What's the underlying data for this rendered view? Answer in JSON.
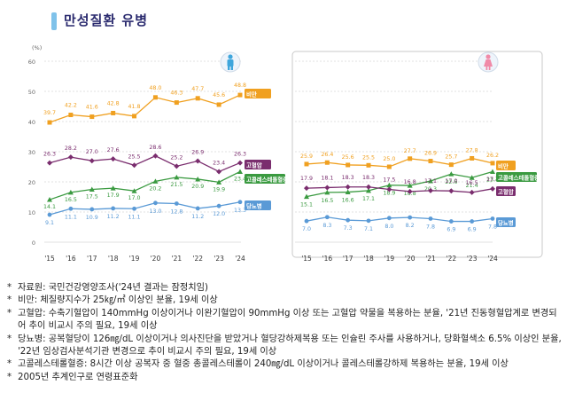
{
  "page_title": "만성질환 유병",
  "colors": {
    "obesity": "#f0a020",
    "hypertension": "#7a2d6e",
    "hypercholesterolemia": "#3a9a40",
    "diabetes": "#5a9ad6",
    "title_bar": "#7fc2ea",
    "male_icon": "#3fa6dc",
    "female_icon": "#f08aa8"
  },
  "icons": {
    "male": "male-person-icon",
    "female": "female-person-icon"
  },
  "chart_data": [
    {
      "type": "line",
      "panel": "male",
      "x": [
        "'15",
        "'16",
        "'17",
        "'18",
        "'19",
        "'20",
        "'21",
        "'22",
        "'23",
        "'24"
      ],
      "ylabel_unit": "(%)",
      "yticks": [
        0,
        10,
        20,
        30,
        40,
        50,
        60
      ],
      "ylim": [
        0,
        60
      ],
      "grid": true,
      "series": [
        {
          "name": "비만",
          "key": "obesity",
          "values": [
            39.7,
            42.2,
            41.6,
            42.8,
            41.8,
            48.0,
            46.3,
            47.7,
            45.6,
            48.8
          ],
          "labels": [
            "39.7",
            "42.2",
            "41.6",
            "42.8",
            "41.8",
            "48.0",
            "46.3",
            "47.7",
            "45.6",
            "48.8"
          ]
        },
        {
          "name": "고혈압",
          "key": "hypertension",
          "values": [
            26.3,
            28.2,
            27.0,
            27.6,
            25.5,
            28.6,
            25.2,
            26.9,
            23.4,
            26.3
          ],
          "labels": [
            "26.3",
            "28.2",
            "27.0",
            "27.6",
            "25.5",
            "28.6",
            "25.2",
            "26.9",
            "23.4",
            "26.3"
          ]
        },
        {
          "name": "고콜레스테롤혈증",
          "key": "hypercholesterolemia",
          "values": [
            14.1,
            16.5,
            17.5,
            17.9,
            17.0,
            20.2,
            21.5,
            20.9,
            19.9,
            23.4
          ],
          "labels": [
            "14.1",
            "16.5",
            "17.5",
            "17.9",
            "17.0",
            "20.2",
            "21.5",
            "20.9",
            "19.9",
            "23.4"
          ]
        },
        {
          "name": "당뇨병",
          "key": "diabetes",
          "values": [
            9.1,
            11.1,
            10.9,
            11.2,
            11.1,
            13.0,
            12.8,
            11.2,
            12.0,
            13.3
          ],
          "labels": [
            "9.1",
            "11.1",
            "10.9",
            "11.2",
            "11.1",
            "13.0",
            "12.8",
            "11.2",
            "12.0",
            "13.3"
          ]
        }
      ]
    },
    {
      "type": "line",
      "panel": "female",
      "x": [
        "'15",
        "'16",
        "'17",
        "'18",
        "'19",
        "'20",
        "'21",
        "'22",
        "'23",
        "'24"
      ],
      "ylim": [
        0,
        60
      ],
      "grid": true,
      "series": [
        {
          "name": "비만",
          "key": "obesity",
          "values": [
            25.9,
            26.4,
            25.6,
            25.5,
            25.0,
            27.7,
            26.9,
            25.7,
            27.8,
            26.2
          ],
          "labels": [
            "25.9",
            "26.4",
            "25.6",
            "25.5",
            "25.0",
            "27.7",
            "26.9",
            "25.7",
            "27.8",
            "26.2"
          ]
        },
        {
          "name": "고콜레스테롤혈증",
          "key": "hypercholesterolemia",
          "values": [
            15.1,
            16.5,
            16.6,
            17.1,
            18.9,
            18.8,
            20.3,
            22.6,
            21.4,
            23.4
          ],
          "labels": [
            "15.1",
            "16.5",
            "16.6",
            "17.1",
            "18.9",
            "18.8",
            "20.3",
            "22.6",
            "21.4",
            "23.4"
          ]
        },
        {
          "name": "고혈압",
          "key": "hypertension",
          "values": [
            17.9,
            18.1,
            18.3,
            18.3,
            17.5,
            16.8,
            17.1,
            17.0,
            16.5,
            17.7
          ],
          "labels": [
            "17.9",
            "18.1",
            "18.3",
            "18.3",
            "17.5",
            "16.8",
            "17.1",
            "17.0",
            "16.5",
            "17.7"
          ]
        },
        {
          "name": "당뇨병",
          "key": "diabetes",
          "values": [
            7.0,
            8.3,
            7.3,
            7.1,
            8.0,
            8.2,
            7.8,
            6.9,
            6.9,
            7.8
          ],
          "labels": [
            "7.0",
            "8.3",
            "7.3",
            "7.1",
            "8.0",
            "8.2",
            "7.8",
            "6.9",
            "6.9",
            "7.8"
          ]
        }
      ]
    }
  ],
  "notes": [
    {
      "bullet": "*",
      "text": "자료원: 국민건강영양조사('24년 결과는 잠정치임)"
    },
    {
      "bullet": "*",
      "text": "비만: 체질량지수가 25㎏/㎡ 이상인 분율, 19세 이상"
    },
    {
      "bullet": "*",
      "text": "고혈압: 수축기혈압이 140mmHg 이상이거나 이완기혈압이 90mmHg 이상 또는 고혈압 약물을 복용하는 분율, '21년 진동형혈압계로 변경되어 추이 비교시 주의 필요, 19세 이상"
    },
    {
      "bullet": "*",
      "text": "당뇨병: 공복혈당이 126㎎/dL 이상이거나 의사진단을 받았거나 혈당강하제복용 또는 인슐린 주사를 사용하거나, 당화혈색소 6.5% 이상인 분율, '22년 임상검사분석기관 변경으로 추이 비교시 주의 필요, 19세 이상"
    },
    {
      "bullet": "*",
      "text": "고콜레스테롤혈증: 8시간 이상 공복자 중 혈중 총콜레스테롤이 240㎎/dL 이상이거나 콜레스테롤강하제 복용하는 분율, 19세 이상"
    },
    {
      "bullet": "*",
      "text": "2005년 추계인구로 연령표준화"
    }
  ]
}
